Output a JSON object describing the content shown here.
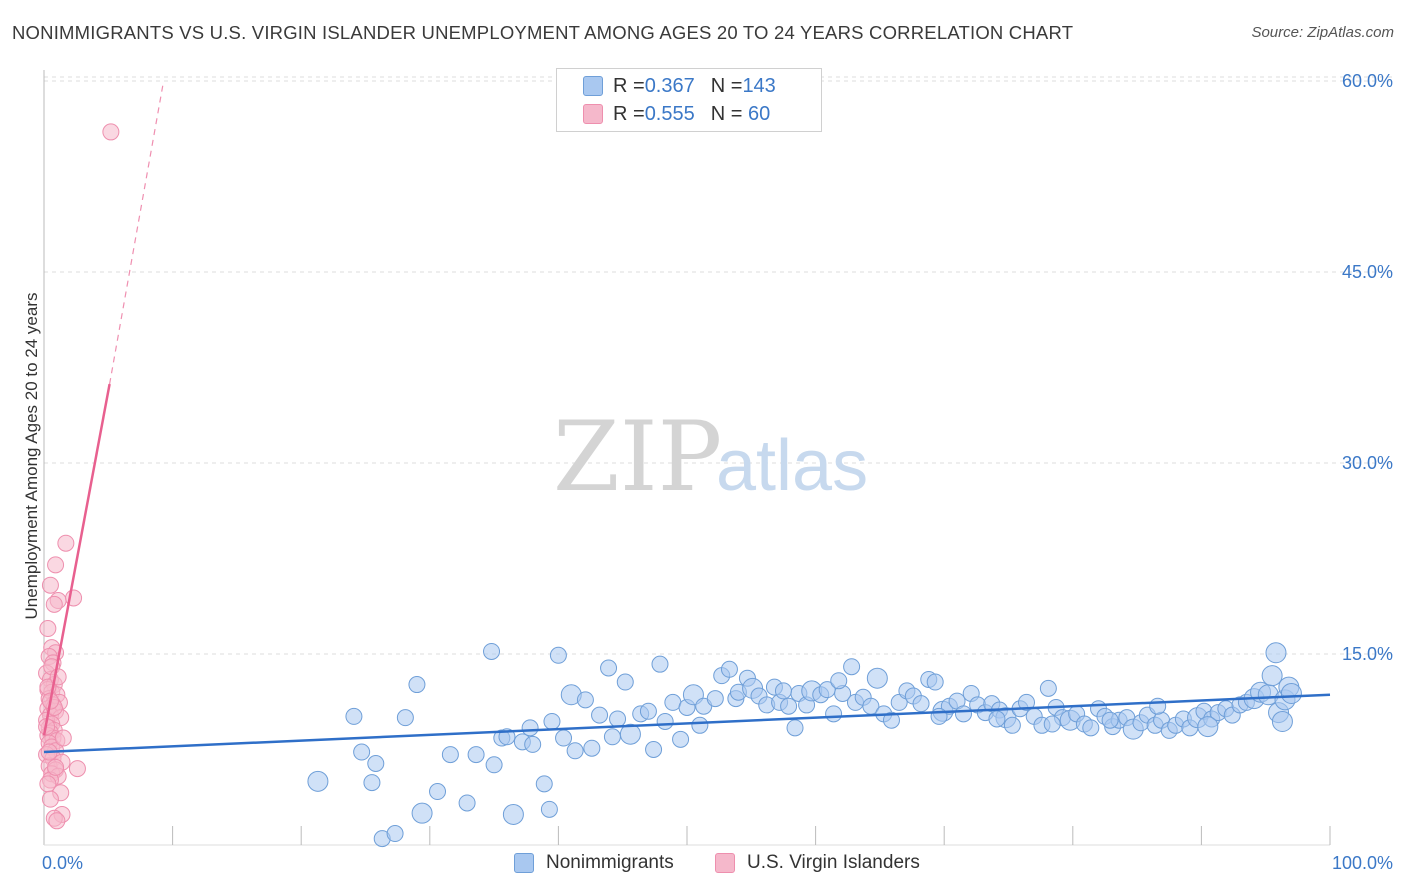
{
  "title": "NONIMMIGRANTS VS U.S. VIRGIN ISLANDER UNEMPLOYMENT AMONG AGES 20 TO 24 YEARS CORRELATION CHART",
  "source": "Source: ZipAtlas.com",
  "watermark": {
    "zip": "ZIP",
    "atlas": "atlas"
  },
  "legend": {
    "rows": [
      {
        "r_label": "R = ",
        "r_value": "0.367",
        "n_label": "N = ",
        "n_value": "143"
      },
      {
        "r_label": "R = ",
        "r_value": "0.555",
        "n_label": "N = ",
        "n_value": " 60"
      }
    ]
  },
  "bottom_legend": [
    "Nonimmigrants",
    "U.S. Virgin Islanders"
  ],
  "colors": {
    "blue_fill": "#a9c8f0",
    "blue_stroke": "#6f9fd8",
    "blue_line": "#2f6fc8",
    "pink_fill": "#f5b8cb",
    "pink_stroke": "#ee8fae",
    "pink_line": "#e8608f",
    "grid": "#dddddd",
    "tick_text": "#3b78c7"
  },
  "chart_data": {
    "type": "scatter",
    "title": "NONIMMIGRANTS VS U.S. VIRGIN ISLANDER UNEMPLOYMENT AMONG AGES 20 TO 24 YEARS CORRELATION CHART",
    "xlabel": "",
    "ylabel": "Unemployment Among Ages 20 to 24 years",
    "xlim": [
      0,
      100
    ],
    "ylim": [
      0,
      62
    ],
    "x_tick_labels": [
      "0.0%",
      "100.0%"
    ],
    "y_ticks": [
      15,
      30,
      45,
      60
    ],
    "y_tick_labels": [
      "15.0%",
      "30.0%",
      "45.0%",
      "60.0%"
    ],
    "grid": true,
    "legend_position": "top-center",
    "series": [
      {
        "name": "Nonimmigrants",
        "color": "#a9c8f0",
        "trend": {
          "x": [
            0,
            100
          ],
          "y": [
            7.3,
            11.8
          ]
        },
        "points": [
          [
            21.3,
            5.0
          ],
          [
            24.1,
            10.1
          ],
          [
            24.7,
            7.3
          ],
          [
            25.5,
            4.9
          ],
          [
            25.8,
            6.4
          ],
          [
            26.3,
            0.5
          ],
          [
            27.3,
            0.9
          ],
          [
            28.1,
            10.0
          ],
          [
            29.0,
            12.6
          ],
          [
            29.4,
            2.5
          ],
          [
            30.6,
            4.2
          ],
          [
            31.6,
            7.1
          ],
          [
            32.9,
            3.3
          ],
          [
            33.6,
            7.1
          ],
          [
            34.8,
            15.2
          ],
          [
            35.0,
            6.3
          ],
          [
            35.6,
            8.4
          ],
          [
            36.0,
            8.5
          ],
          [
            36.5,
            2.4
          ],
          [
            37.2,
            8.1
          ],
          [
            37.8,
            9.2
          ],
          [
            38.0,
            7.9
          ],
          [
            38.9,
            4.8
          ],
          [
            39.3,
            2.8
          ],
          [
            39.5,
            9.7
          ],
          [
            40.0,
            14.9
          ],
          [
            40.4,
            8.4
          ],
          [
            41.0,
            11.8
          ],
          [
            41.3,
            7.4
          ],
          [
            42.1,
            11.4
          ],
          [
            42.6,
            7.6
          ],
          [
            43.2,
            10.2
          ],
          [
            43.9,
            13.9
          ],
          [
            44.2,
            8.5
          ],
          [
            44.6,
            9.9
          ],
          [
            45.2,
            12.8
          ],
          [
            45.6,
            8.7
          ],
          [
            46.4,
            10.3
          ],
          [
            47.0,
            10.5
          ],
          [
            47.4,
            7.5
          ],
          [
            47.9,
            14.2
          ],
          [
            48.3,
            9.7
          ],
          [
            48.9,
            11.2
          ],
          [
            49.5,
            8.3
          ],
          [
            50.0,
            10.8
          ],
          [
            50.5,
            11.8
          ],
          [
            51.0,
            9.4
          ],
          [
            51.3,
            10.9
          ],
          [
            52.2,
            11.5
          ],
          [
            52.7,
            13.3
          ],
          [
            53.3,
            13.8
          ],
          [
            53.8,
            11.5
          ],
          [
            54.0,
            12.0
          ],
          [
            54.7,
            13.1
          ],
          [
            55.1,
            12.3
          ],
          [
            55.6,
            11.7
          ],
          [
            56.2,
            11.0
          ],
          [
            56.8,
            12.4
          ],
          [
            57.2,
            11.2
          ],
          [
            57.9,
            10.9
          ],
          [
            58.4,
            9.2
          ],
          [
            58.7,
            11.9
          ],
          [
            59.3,
            11.0
          ],
          [
            59.7,
            12.1
          ],
          [
            60.4,
            11.8
          ],
          [
            60.9,
            12.2
          ],
          [
            61.4,
            10.3
          ],
          [
            62.1,
            11.9
          ],
          [
            62.8,
            14.0
          ],
          [
            63.1,
            11.2
          ],
          [
            63.7,
            11.6
          ],
          [
            64.3,
            10.9
          ],
          [
            64.8,
            13.1
          ],
          [
            65.3,
            10.3
          ],
          [
            65.9,
            9.8
          ],
          [
            66.5,
            11.2
          ],
          [
            67.1,
            12.1
          ],
          [
            67.6,
            11.7
          ],
          [
            68.2,
            11.1
          ],
          [
            68.8,
            13.0
          ],
          [
            69.3,
            12.8
          ],
          [
            69.9,
            10.5
          ],
          [
            70.4,
            10.9
          ],
          [
            71.0,
            11.3
          ],
          [
            71.5,
            10.3
          ],
          [
            72.1,
            11.9
          ],
          [
            72.6,
            11.0
          ],
          [
            73.2,
            10.4
          ],
          [
            73.7,
            11.1
          ],
          [
            74.3,
            10.6
          ],
          [
            74.8,
            10.0
          ],
          [
            75.3,
            9.4
          ],
          [
            75.9,
            10.7
          ],
          [
            76.4,
            11.2
          ],
          [
            77.0,
            10.1
          ],
          [
            77.6,
            9.4
          ],
          [
            78.1,
            12.3
          ],
          [
            78.7,
            10.8
          ],
          [
            79.2,
            10.0
          ],
          [
            79.8,
            9.8
          ],
          [
            80.3,
            10.3
          ],
          [
            80.9,
            9.5
          ],
          [
            81.4,
            9.2
          ],
          [
            82.0,
            10.7
          ],
          [
            82.5,
            10.1
          ],
          [
            83.1,
            9.3
          ],
          [
            83.6,
            9.8
          ],
          [
            84.2,
            10.0
          ],
          [
            84.7,
            9.1
          ],
          [
            85.3,
            9.6
          ],
          [
            85.8,
            10.2
          ],
          [
            86.4,
            9.4
          ],
          [
            86.9,
            9.8
          ],
          [
            87.5,
            9.0
          ],
          [
            88.0,
            9.4
          ],
          [
            88.6,
            9.9
          ],
          [
            89.1,
            9.2
          ],
          [
            89.7,
            10.0
          ],
          [
            90.2,
            10.5
          ],
          [
            90.8,
            9.9
          ],
          [
            91.3,
            10.4
          ],
          [
            91.9,
            10.7
          ],
          [
            92.4,
            10.2
          ],
          [
            93.0,
            11.0
          ],
          [
            93.5,
            11.2
          ],
          [
            94.1,
            11.5
          ],
          [
            94.6,
            12.0
          ],
          [
            95.2,
            11.8
          ],
          [
            95.8,
            15.1
          ],
          [
            95.5,
            13.3
          ],
          [
            96.0,
            10.4
          ],
          [
            96.3,
            9.7
          ],
          [
            96.5,
            11.4
          ],
          [
            96.8,
            12.4
          ],
          [
            97.0,
            11.9
          ],
          [
            90.5,
            9.3
          ],
          [
            86.6,
            10.9
          ],
          [
            82.9,
            9.8
          ],
          [
            78.4,
            9.5
          ],
          [
            74.1,
            9.9
          ],
          [
            69.6,
            10.1
          ],
          [
            61.8,
            12.9
          ],
          [
            57.5,
            12.1
          ]
        ]
      },
      {
        "name": "U.S. Virgin Islanders",
        "color": "#f5b8cb",
        "trend": {
          "x": [
            0,
            5.1
          ],
          "y": [
            8.6,
            36.2
          ],
          "dashed_to": {
            "x": 9.3,
            "y": 60
          }
        },
        "points": [
          [
            5.2,
            56.0
          ],
          [
            1.7,
            23.7
          ],
          [
            0.9,
            22.0
          ],
          [
            0.5,
            20.4
          ],
          [
            1.1,
            19.2
          ],
          [
            0.8,
            18.9
          ],
          [
            2.3,
            19.4
          ],
          [
            0.3,
            17.0
          ],
          [
            0.6,
            15.5
          ],
          [
            0.9,
            15.1
          ],
          [
            0.4,
            14.8
          ],
          [
            0.7,
            14.3
          ],
          [
            0.2,
            13.5
          ],
          [
            0.5,
            13.0
          ],
          [
            0.8,
            12.6
          ],
          [
            0.3,
            12.2
          ],
          [
            0.6,
            12.0
          ],
          [
            1.0,
            11.8
          ],
          [
            0.4,
            11.5
          ],
          [
            1.2,
            11.2
          ],
          [
            0.7,
            11.0
          ],
          [
            0.3,
            10.7
          ],
          [
            0.9,
            10.5
          ],
          [
            0.5,
            10.2
          ],
          [
            1.3,
            10.0
          ],
          [
            0.2,
            9.8
          ],
          [
            0.6,
            9.5
          ],
          [
            0.4,
            9.2
          ],
          [
            0.8,
            9.0
          ],
          [
            0.5,
            8.8
          ],
          [
            0.3,
            8.6
          ],
          [
            0.7,
            8.4
          ],
          [
            1.0,
            8.2
          ],
          [
            0.4,
            8.0
          ],
          [
            0.6,
            7.7
          ],
          [
            0.9,
            7.4
          ],
          [
            0.2,
            7.1
          ],
          [
            0.7,
            6.8
          ],
          [
            1.4,
            6.5
          ],
          [
            0.4,
            6.2
          ],
          [
            0.9,
            5.9
          ],
          [
            2.6,
            6.0
          ],
          [
            0.6,
            5.6
          ],
          [
            1.1,
            5.4
          ],
          [
            0.5,
            5.1
          ],
          [
            0.3,
            4.8
          ],
          [
            1.3,
            4.1
          ],
          [
            0.5,
            3.6
          ],
          [
            1.4,
            2.4
          ],
          [
            0.8,
            2.1
          ],
          [
            1.0,
            1.9
          ],
          [
            0.3,
            12.4
          ],
          [
            0.6,
            14.0
          ],
          [
            0.2,
            9.3
          ],
          [
            1.5,
            8.4
          ],
          [
            0.8,
            10.8
          ],
          [
            0.4,
            7.3
          ],
          [
            1.1,
            13.2
          ],
          [
            0.5,
            11.3
          ],
          [
            0.9,
            6.1
          ]
        ]
      }
    ]
  }
}
